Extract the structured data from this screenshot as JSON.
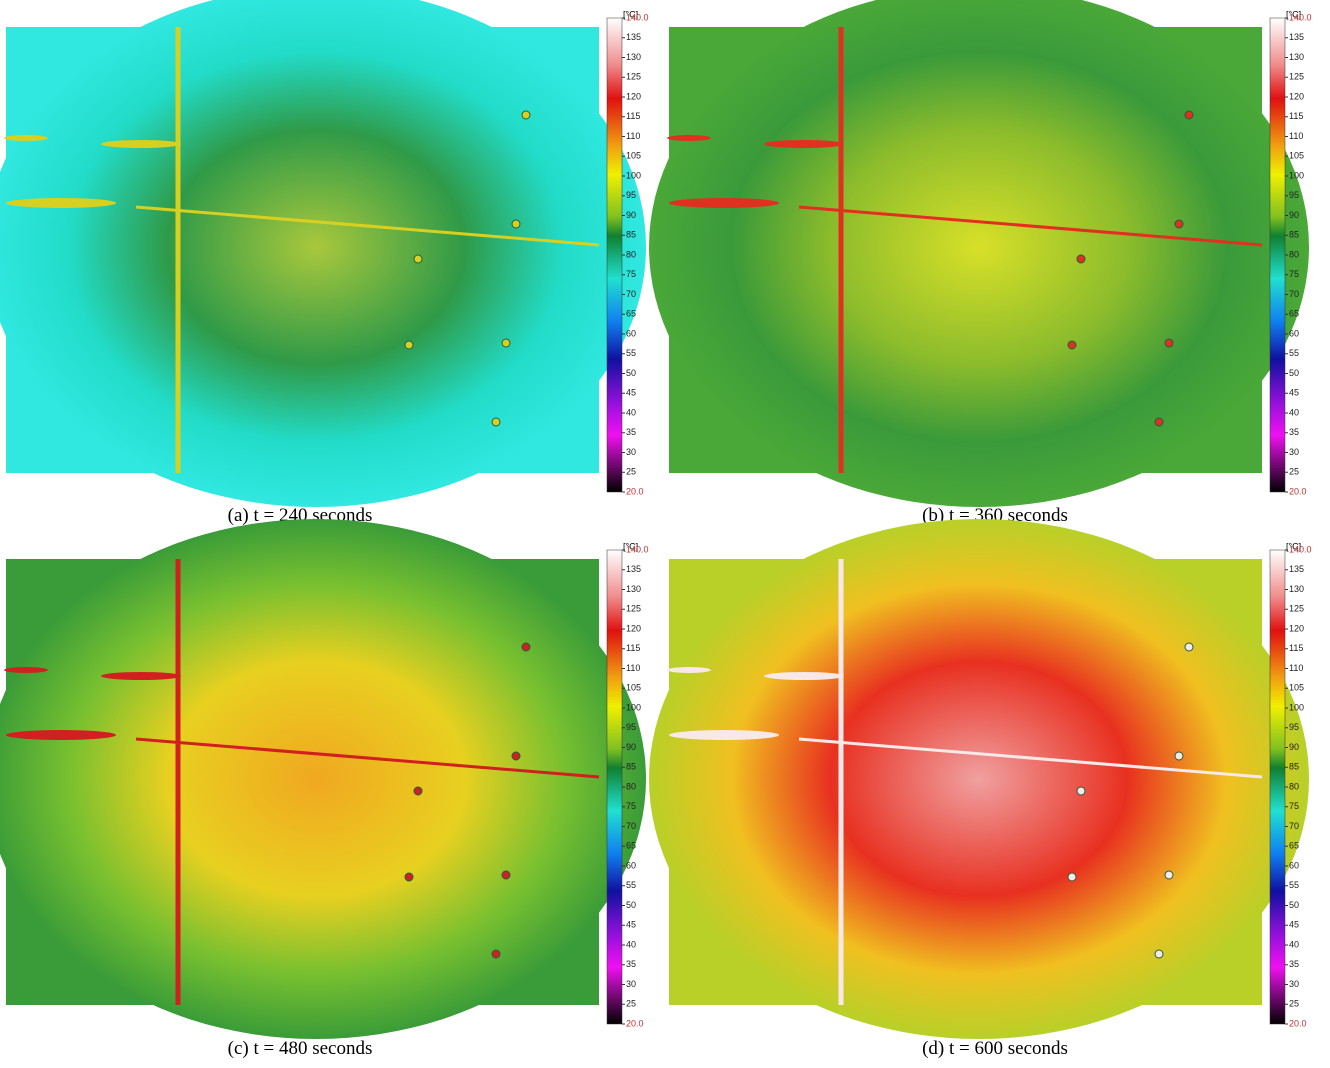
{
  "panels": [
    {
      "caption": "(a) t = 240 seconds"
    },
    {
      "caption": "(b) t = 360 seconds"
    },
    {
      "caption": "(c) t = 480 seconds"
    },
    {
      "caption": "(d) t = 600 seconds"
    }
  ],
  "colorbar": {
    "unit": "[°C]",
    "ticks": [
      {
        "value": 140,
        "label": "140.0"
      },
      135,
      130,
      125,
      120,
      115,
      110,
      105,
      100,
      95,
      90,
      85,
      80,
      75,
      70,
      65,
      60,
      55,
      50,
      45,
      40,
      35,
      30,
      25,
      {
        "value": 20,
        "label": "20.0"
      }
    ]
  }
}
